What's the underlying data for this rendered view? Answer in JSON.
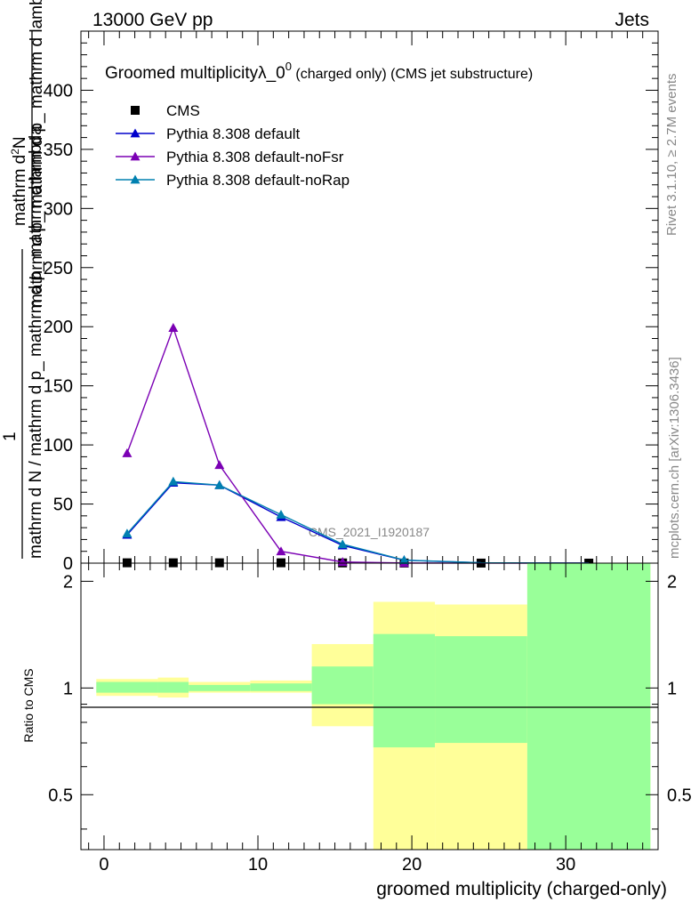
{
  "header": {
    "left": "13000 GeV pp",
    "right": "Jets"
  },
  "side_labels": {
    "rivet": "Rivet 3.1.10, ≥ 2.7M events",
    "mcplots": "mcplots.cern.ch [arXiv:1306.3436]"
  },
  "chart_data": {
    "type": "line",
    "title_main": "Groomed multiplicityλ_0",
    "title_sup": "0",
    "title_tail": " (charged only) (CMS jet substructure)",
    "watermark": "CMS_2021_I1920187",
    "ylabel_numerator": "mathrm d²N",
    "ylabel_numerator_part1": "mathrm d",
    "ylabel_numerator_sup": "2",
    "ylabel_numerator_part2": "N",
    "ylabel_denominator": "mathrm d p_ mathrm d p_ mathrm d lambda",
    "ylabel_one": "1",
    "ylabel_one_denominator": "mathrm d N / mathrm d p_ mathrm d p_ mathrm d lambda",
    "ratio_ylabel": "Ratio to CMS",
    "xlabel": "groomed multiplicity (charged-only)",
    "xlim": [
      -1.5,
      36
    ],
    "ylim": [
      0,
      450
    ],
    "ratio_ylim": [
      0.35,
      2.25
    ],
    "x_ticks": [
      "0",
      "10",
      "20",
      "30"
    ],
    "y_ticks": [
      "0",
      "50",
      "100",
      "150",
      "200",
      "250",
      "300",
      "350",
      "400"
    ],
    "ratio_ticks": [
      "0.5",
      "1",
      "2"
    ],
    "legend_position": "top-left",
    "series": [
      {
        "name": "CMS",
        "marker": "square",
        "color": "#000000",
        "x": [
          1.5,
          4.5,
          7.5,
          11.5,
          15.5,
          19.5,
          24.5,
          31.5
        ],
        "y": [
          0.3,
          0.3,
          0.3,
          0.3,
          0.2,
          0.1,
          0.05,
          0.02
        ]
      },
      {
        "name": "Pythia 8.308 default",
        "marker": "triangle",
        "color": "#0000cc",
        "x": [
          1.5,
          4.5,
          7.5,
          11.5,
          15.5,
          19.5,
          24.5,
          31.5
        ],
        "y": [
          24,
          68,
          66,
          39,
          15,
          2.5,
          0.3,
          0.02
        ]
      },
      {
        "name": "Pythia 8.308 default-noFsr",
        "marker": "triangle",
        "color": "#7b00b4",
        "x": [
          1.5,
          4.5,
          7.5,
          11.5,
          15.5,
          19.5,
          24.5,
          31.5
        ],
        "y": [
          93,
          199,
          83,
          10,
          1,
          0.1,
          0.01,
          0
        ]
      },
      {
        "name": "Pythia 8.308 default-noRap",
        "marker": "triangle",
        "color": "#0080b0",
        "x": [
          1.5,
          4.5,
          7.5,
          11.5,
          15.5,
          19.5,
          24.5,
          31.5
        ],
        "y": [
          25,
          69,
          66,
          41,
          16,
          2.6,
          0.3,
          0.02
        ]
      }
    ],
    "uncertainty_bands": [
      {
        "x0": -0.5,
        "x1": 3.5,
        "yellow": [
          0.95,
          1.06
        ],
        "green": [
          0.97,
          1.04
        ]
      },
      {
        "x0": 3.5,
        "x1": 5.5,
        "yellow": [
          0.94,
          1.07
        ],
        "green": [
          0.97,
          1.04
        ]
      },
      {
        "x0": 5.5,
        "x1": 9.5,
        "yellow": [
          0.97,
          1.04
        ],
        "green": [
          0.98,
          1.02
        ]
      },
      {
        "x0": 9.5,
        "x1": 13.5,
        "yellow": [
          0.97,
          1.05
        ],
        "green": [
          0.98,
          1.03
        ]
      },
      {
        "x0": 13.5,
        "x1": 17.5,
        "yellow": [
          0.78,
          1.33
        ],
        "green": [
          0.9,
          1.15
        ]
      },
      {
        "x0": 17.5,
        "x1": 21.5,
        "yellow": [
          0.35,
          1.75
        ],
        "green": [
          0.68,
          1.42
        ]
      },
      {
        "x0": 21.5,
        "x1": 27.5,
        "yellow": [
          0.35,
          1.72
        ],
        "green": [
          0.7,
          1.4
        ]
      },
      {
        "x0": 27.5,
        "x1": 35.5,
        "yellow": [
          0.35,
          2.25
        ],
        "green": [
          0.35,
          2.25
        ]
      }
    ],
    "colors": {
      "yellow_band": "#ffff99",
      "green_band": "#99ff99"
    }
  }
}
